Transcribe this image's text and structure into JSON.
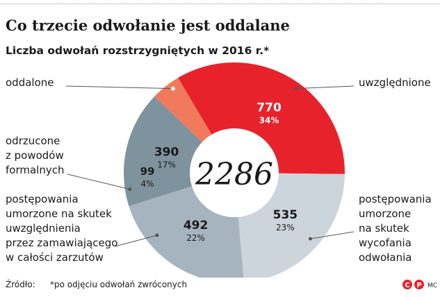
{
  "title": "Co trzecie odwołanie jest oddalane",
  "subtitle": "Liczba odwołań rozstrzygniętych w 2016 r.*",
  "source_label": "Źródło:",
  "footnote": "*po odjęciu odwołań zwróconych",
  "credit": "MC",
  "chart_data": {
    "type": "pie",
    "variant": "donut",
    "total_label": "2286",
    "categories": [
      "oddalone",
      "uwzględnione",
      "postępowania umorzone na skutek wycofania odwołania",
      "postępowania umorzone na skutek uwzględnienia przez zamawiającego w całości zarzutów",
      "odrzucone z powodów formalnych"
    ],
    "values": [
      770,
      535,
      492,
      390,
      99
    ],
    "percent_labels": [
      "34%",
      "23%",
      "22%",
      "17%",
      "4%"
    ],
    "value_labels": [
      "770",
      "535",
      "492",
      "390",
      "99"
    ],
    "label_lines": [
      [
        "oddalone"
      ],
      [
        "uwzględnione"
      ],
      [
        "postępowania",
        "umorzone",
        "na skutek",
        "wycofania",
        "odwołania"
      ],
      [
        "postępowania",
        "umorzone na skutek",
        "uwzględnienia",
        "przez zamawiającego",
        "w całości zarzutów"
      ],
      [
        "odrzucone",
        "z powodów",
        "formalnych"
      ]
    ],
    "colors": [
      "#e8222b",
      "#cdd5dc",
      "#a6b4bf",
      "#7f939e",
      "#f07a5b"
    ],
    "value_label_colors": [
      "#ffffff",
      "#1a1a1a",
      "#1a1a1a",
      "#1a1a1a",
      "#1a1a1a"
    ]
  }
}
